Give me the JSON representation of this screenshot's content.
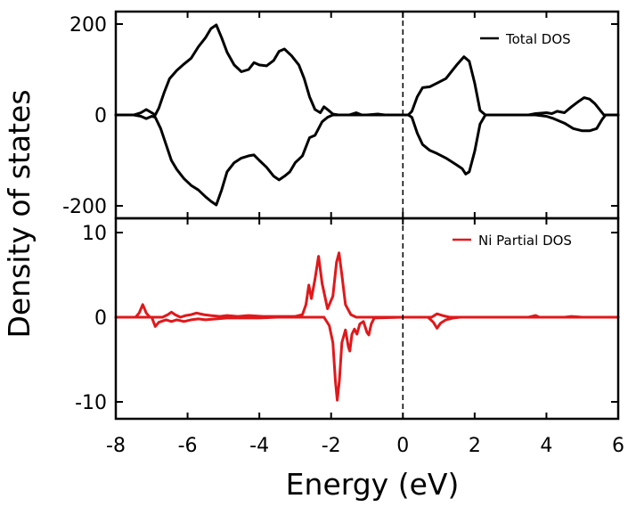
{
  "chart_data": {
    "type": "line",
    "xlabel": "Energy (eV)",
    "ylabel": "Density of states",
    "xlim": [
      -8,
      6
    ],
    "xticks": [
      -8,
      -6,
      -4,
      -2,
      0,
      2,
      4,
      6
    ],
    "xtick_labels": [
      "-8",
      "-6",
      "-4",
      "-2",
      "0",
      "2",
      "4",
      "6"
    ],
    "fermi_level": 0,
    "colors": {
      "total": "#000000",
      "ni": "#e0181b",
      "axis": "#000000"
    },
    "panels": [
      {
        "id": "total",
        "ylim": [
          -220,
          220
        ],
        "yticks": [
          -200,
          0,
          200
        ],
        "ytick_labels": [
          "-200",
          "0",
          "200"
        ],
        "legend": "Total DOS",
        "legend_position": "top-right",
        "series": [
          {
            "name": "Total DOS (spin up)",
            "points": [
              [
                -8,
                0
              ],
              [
                -7.5,
                0
              ],
              [
                -7.3,
                5
              ],
              [
                -7.15,
                12
              ],
              [
                -7.0,
                5
              ],
              [
                -6.9,
                0
              ],
              [
                -6.8,
                15
              ],
              [
                -6.65,
                50
              ],
              [
                -6.5,
                80
              ],
              [
                -6.3,
                98
              ],
              [
                -6.1,
                112
              ],
              [
                -5.9,
                125
              ],
              [
                -5.7,
                150
              ],
              [
                -5.5,
                170
              ],
              [
                -5.35,
                190
              ],
              [
                -5.2,
                198
              ],
              [
                -5.05,
                170
              ],
              [
                -4.9,
                138
              ],
              [
                -4.7,
                110
              ],
              [
                -4.5,
                95
              ],
              [
                -4.3,
                100
              ],
              [
                -4.15,
                115
              ],
              [
                -4.0,
                110
              ],
              [
                -3.8,
                108
              ],
              [
                -3.6,
                120
              ],
              [
                -3.45,
                140
              ],
              [
                -3.3,
                145
              ],
              [
                -3.1,
                130
              ],
              [
                -2.9,
                110
              ],
              [
                -2.75,
                80
              ],
              [
                -2.6,
                40
              ],
              [
                -2.45,
                12
              ],
              [
                -2.3,
                5
              ],
              [
                -2.2,
                18
              ],
              [
                -2.1,
                12
              ],
              [
                -1.95,
                2
              ],
              [
                -1.8,
                0
              ],
              [
                -1.5,
                0
              ],
              [
                -1.3,
                5
              ],
              [
                -1.15,
                0
              ],
              [
                -1.0,
                0
              ],
              [
                -0.7,
                2
              ],
              [
                -0.5,
                0
              ],
              [
                0,
                0
              ],
              [
                0.15,
                0
              ],
              [
                0.25,
                8
              ],
              [
                0.4,
                40
              ],
              [
                0.55,
                60
              ],
              [
                0.75,
                62
              ],
              [
                0.95,
                70
              ],
              [
                1.2,
                80
              ],
              [
                1.5,
                110
              ],
              [
                1.7,
                128
              ],
              [
                1.85,
                118
              ],
              [
                2.0,
                70
              ],
              [
                2.15,
                10
              ],
              [
                2.3,
                0
              ],
              [
                3.5,
                0
              ],
              [
                3.7,
                3
              ],
              [
                4.0,
                5
              ],
              [
                4.15,
                3
              ],
              [
                4.3,
                8
              ],
              [
                4.5,
                5
              ],
              [
                4.7,
                18
              ],
              [
                4.9,
                30
              ],
              [
                5.05,
                38
              ],
              [
                5.2,
                35
              ],
              [
                5.35,
                25
              ],
              [
                5.5,
                10
              ],
              [
                5.6,
                0
              ],
              [
                6,
                0
              ]
            ]
          },
          {
            "name": "Total DOS (spin down)",
            "points": [
              [
                -8,
                0
              ],
              [
                -7.5,
                0
              ],
              [
                -7.3,
                -3
              ],
              [
                -7.15,
                -8
              ],
              [
                -7.0,
                -3
              ],
              [
                -6.9,
                -5
              ],
              [
                -6.75,
                -30
              ],
              [
                -6.6,
                -65
              ],
              [
                -6.45,
                -100
              ],
              [
                -6.3,
                -120
              ],
              [
                -6.1,
                -140
              ],
              [
                -5.9,
                -155
              ],
              [
                -5.7,
                -165
              ],
              [
                -5.5,
                -180
              ],
              [
                -5.35,
                -190
              ],
              [
                -5.2,
                -198
              ],
              [
                -5.05,
                -165
              ],
              [
                -4.9,
                -125
              ],
              [
                -4.7,
                -105
              ],
              [
                -4.5,
                -95
              ],
              [
                -4.3,
                -90
              ],
              [
                -4.15,
                -88
              ],
              [
                -4.0,
                -100
              ],
              [
                -3.8,
                -115
              ],
              [
                -3.6,
                -135
              ],
              [
                -3.45,
                -143
              ],
              [
                -3.3,
                -135
              ],
              [
                -3.15,
                -125
              ],
              [
                -3.0,
                -105
              ],
              [
                -2.8,
                -90
              ],
              [
                -2.6,
                -50
              ],
              [
                -2.45,
                -45
              ],
              [
                -2.35,
                -30
              ],
              [
                -2.25,
                -15
              ],
              [
                -2.1,
                -5
              ],
              [
                -1.95,
                0
              ],
              [
                0,
                0
              ],
              [
                0.15,
                0
              ],
              [
                0.25,
                -5
              ],
              [
                0.4,
                -40
              ],
              [
                0.55,
                -65
              ],
              [
                0.75,
                -78
              ],
              [
                0.95,
                -85
              ],
              [
                1.2,
                -95
              ],
              [
                1.5,
                -110
              ],
              [
                1.65,
                -118
              ],
              [
                1.75,
                -130
              ],
              [
                1.85,
                -125
              ],
              [
                2.0,
                -80
              ],
              [
                2.15,
                -20
              ],
              [
                2.3,
                0
              ],
              [
                3.7,
                0
              ],
              [
                4.0,
                -3
              ],
              [
                4.2,
                -8
              ],
              [
                4.5,
                -18
              ],
              [
                4.75,
                -30
              ],
              [
                5.0,
                -35
              ],
              [
                5.2,
                -35
              ],
              [
                5.4,
                -30
              ],
              [
                5.55,
                -10
              ],
              [
                5.65,
                0
              ],
              [
                6,
                0
              ]
            ]
          }
        ]
      },
      {
        "id": "ni",
        "ylim": [
          -12,
          12
        ],
        "yticks": [
          -10,
          0,
          10
        ],
        "ytick_labels": [
          "-10",
          "0",
          "10"
        ],
        "legend": "Ni Partial DOS",
        "legend_position": "top-right",
        "series": [
          {
            "name": "Ni Partial DOS (spin up)",
            "points": [
              [
                -8,
                0
              ],
              [
                -7.45,
                0
              ],
              [
                -7.35,
                0.5
              ],
              [
                -7.25,
                1.5
              ],
              [
                -7.15,
                0.5
              ],
              [
                -7.05,
                0
              ],
              [
                -6.7,
                0
              ],
              [
                -6.55,
                0.3
              ],
              [
                -6.45,
                0.6
              ],
              [
                -6.35,
                0.3
              ],
              [
                -6.2,
                0
              ],
              [
                -6.05,
                0.2
              ],
              [
                -5.9,
                0.3
              ],
              [
                -5.75,
                0.5
              ],
              [
                -5.55,
                0.3
              ],
              [
                -5.35,
                0.2
              ],
              [
                -5.1,
                0.1
              ],
              [
                -4.9,
                0.2
              ],
              [
                -4.6,
                0.1
              ],
              [
                -4.3,
                0.2
              ],
              [
                -3.9,
                0.1
              ],
              [
                -3.5,
                0.1
              ],
              [
                -3.0,
                0.1
              ],
              [
                -2.8,
                0.3
              ],
              [
                -2.7,
                1.5
              ],
              [
                -2.62,
                3.8
              ],
              [
                -2.55,
                2.2
              ],
              [
                -2.45,
                4.5
              ],
              [
                -2.35,
                7.2
              ],
              [
                -2.25,
                4.0
              ],
              [
                -2.1,
                1.0
              ],
              [
                -1.95,
                2.5
              ],
              [
                -1.85,
                6.5
              ],
              [
                -1.78,
                7.6
              ],
              [
                -1.7,
                5.0
              ],
              [
                -1.6,
                1.5
              ],
              [
                -1.45,
                0.3
              ],
              [
                -1.3,
                0
              ],
              [
                -1.0,
                0
              ],
              [
                0,
                0
              ],
              [
                0.8,
                0
              ],
              [
                0.95,
                0.4
              ],
              [
                1.1,
                0.2
              ],
              [
                1.3,
                0
              ],
              [
                3.5,
                0
              ],
              [
                3.7,
                0.2
              ],
              [
                3.8,
                0
              ],
              [
                4.5,
                0
              ],
              [
                4.7,
                0.1
              ],
              [
                5.0,
                0
              ],
              [
                6,
                0
              ]
            ]
          },
          {
            "name": "Ni Partial DOS (spin down)",
            "points": [
              [
                -8,
                0
              ],
              [
                -7.0,
                0
              ],
              [
                -6.9,
                -1.1
              ],
              [
                -6.8,
                -0.6
              ],
              [
                -6.6,
                -0.3
              ],
              [
                -6.45,
                -0.5
              ],
              [
                -6.3,
                -0.3
              ],
              [
                -6.1,
                -0.5
              ],
              [
                -5.9,
                -0.3
              ],
              [
                -5.7,
                -0.2
              ],
              [
                -5.5,
                -0.3
              ],
              [
                -5.2,
                -0.2
              ],
              [
                -4.9,
                -0.1
              ],
              [
                -4.5,
                -0.1
              ],
              [
                -4.0,
                -0.1
              ],
              [
                -3.5,
                0
              ],
              [
                -2.2,
                0
              ],
              [
                -2.05,
                -1.0
              ],
              [
                -1.95,
                -3.0
              ],
              [
                -1.88,
                -7.5
              ],
              [
                -1.83,
                -9.8
              ],
              [
                -1.77,
                -7.5
              ],
              [
                -1.7,
                -3.0
              ],
              [
                -1.6,
                -1.5
              ],
              [
                -1.52,
                -3.5
              ],
              [
                -1.48,
                -4.0
              ],
              [
                -1.42,
                -2.0
              ],
              [
                -1.35,
                -1.4
              ],
              [
                -1.28,
                -2.0
              ],
              [
                -1.2,
                -0.8
              ],
              [
                -1.1,
                -0.5
              ],
              [
                -1.0,
                -1.8
              ],
              [
                -0.95,
                -2.1
              ],
              [
                -0.88,
                -0.8
              ],
              [
                -0.8,
                -0.1
              ],
              [
                0,
                0
              ],
              [
                0.7,
                0
              ],
              [
                0.85,
                -0.6
              ],
              [
                0.95,
                -1.3
              ],
              [
                1.05,
                -0.7
              ],
              [
                1.2,
                -0.3
              ],
              [
                1.4,
                -0.1
              ],
              [
                1.6,
                0
              ],
              [
                6,
                0
              ]
            ]
          }
        ]
      }
    ]
  }
}
